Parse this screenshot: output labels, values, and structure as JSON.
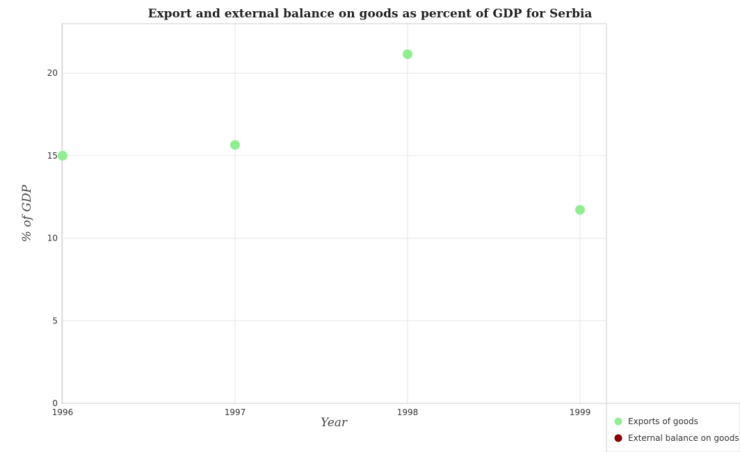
{
  "chart_data": {
    "type": "scatter",
    "title": "Export and external balance on goods as percent of GDP for Serbia",
    "xlabel": "Year",
    "ylabel": "% of GDP",
    "x": [
      "1996",
      "1997",
      "1998",
      "1999"
    ],
    "ylim": [
      0,
      23
    ],
    "yticks": [
      0,
      5,
      10,
      15,
      20
    ],
    "grid": true,
    "legend_position": "bottom-right",
    "series": [
      {
        "name": "Exports of goods",
        "color": "#90ee90",
        "values": [
          15.0,
          15.65,
          21.15,
          11.72
        ]
      },
      {
        "name": "External balance on goods",
        "color": "#8b0000",
        "values": [
          null,
          null,
          null,
          null
        ]
      }
    ]
  }
}
